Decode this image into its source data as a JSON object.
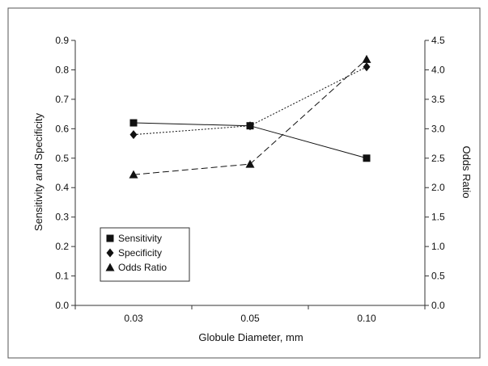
{
  "chart_data": {
    "type": "line",
    "categories": [
      "0.03",
      "0.05",
      "0.10"
    ],
    "xlabel": "Globule Diameter, mm",
    "ylabel_left": "Sensitivity and Specificity",
    "ylabel_right": "Odds Ratio",
    "ylim_left": [
      0,
      0.9
    ],
    "ylim_right": [
      0,
      4.5
    ],
    "yticks_left": [
      "0.0",
      "0.1",
      "0.2",
      "0.3",
      "0.4",
      "0.5",
      "0.6",
      "0.7",
      "0.8",
      "0.9"
    ],
    "yticks_right": [
      "0.0",
      "0.5",
      "1.0",
      "1.5",
      "2.0",
      "2.5",
      "3.0",
      "3.5",
      "4.0",
      "4.5"
    ],
    "grid": false,
    "legend_position": "bottom-left",
    "series": [
      {
        "name": "Sensitivity",
        "axis": "left",
        "marker": "square",
        "line_style": "solid",
        "values": [
          0.62,
          0.61,
          0.5
        ]
      },
      {
        "name": "Specificity",
        "axis": "left",
        "marker": "diamond",
        "line_style": "dotted",
        "values": [
          0.58,
          0.61,
          0.81
        ]
      },
      {
        "name": "Odds Ratio",
        "axis": "right",
        "marker": "triangle",
        "line_style": "dashed",
        "values": [
          2.22,
          2.4,
          4.18
        ]
      }
    ],
    "colors": {
      "marks": "#111111",
      "frame": "#333333",
      "background": "#ffffff"
    }
  }
}
